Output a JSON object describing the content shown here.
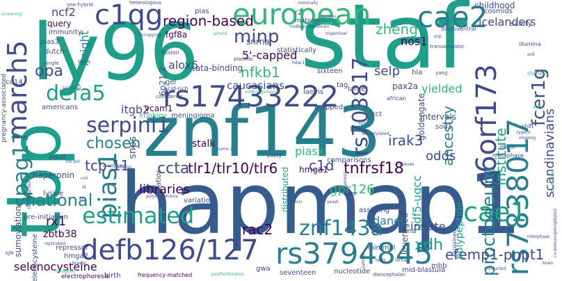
{
  "colors": {
    "background": "#ffffff",
    "teal": "#1f9e89",
    "dark_teal": "#277f8e",
    "blue": "#365c8d",
    "navy": "#3e4a89",
    "indigo": "#46327e",
    "purple": "#440154",
    "green": "#35b779",
    "light_green": "#6ece58",
    "lime": "#b5de2b",
    "yellow": "#dde318"
  },
  "words": {
    "w1": "staf",
    "w2": "ly96",
    "w3": "hapmap1",
    "w4": "znf143",
    "w5": "tbp",
    "w6": "european",
    "w7": "rs17433222",
    "w8": "c6orf173",
    "w9": "rs7838017",
    "w10": "cae2",
    "w11": "c1qg",
    "w12": "march5",
    "w13": "defb126/127",
    "w14": "rs3794845",
    "w15": "rs703817",
    "w16": "pias1",
    "w17": "cae1",
    "w18": "serpini1",
    "w19": "estimated",
    "w20": "spag17",
    "w21": "znf143a",
    "w22": "proctodeum",
    "w23": "defa5",
    "w24": "minp",
    "w25": "fcer1g",
    "w26": "national",
    "w27": "region-based",
    "w28": "institute",
    "w29": "tlr1/tlr10/tlr6",
    "w30": "ancestry",
    "w31": "tcp-11",
    "w32": "gdf5-uqcc",
    "w33": "ccta",
    "w34": "chosen",
    "w35": "tnfrsf18",
    "w36": "scandinavians",
    "w37": "efemp1-pnpt1",
    "w38": "xdh",
    "w39": "rac2",
    "w40": "nfkb1",
    "w41": "caucasians",
    "w42": "alox5",
    "w43": "ncf2",
    "w44": "opa",
    "w45": "height",
    "w46": "zheng",
    "w47": "nos1",
    "w48": "selp",
    "w49": "irak3",
    "w50": "5'-capped",
    "w51": "piasx",
    "w52": "c1d",
    "w53": "gpr126",
    "w54": "libraries",
    "w55": "danes",
    "w56": "polypeptide",
    "w57": "itgb2",
    "w58": "goldengate",
    "w59": "innate",
    "w60": "snps",
    "w61": "odds",
    "w62": "selenocysteine",
    "w63": "sumoylation",
    "w64": "zbtb38",
    "w65": "rx1",
    "w66": "hmga1",
    "w67": "distributed",
    "w68": "pax2a",
    "w69": "leveraged",
    "w70": "chaperonin",
    "w71": "yielded",
    "w72": "stalk",
    "w73": "6p21.2",
    "w74": "tata-binding",
    "w75": "snrna",
    "w76": "icelanders",
    "w77": "childhood",
    "w78": "fgf8a",
    "w79": "query",
    "w80": "immunity",
    "w81": "pias3",
    "w82": "dutch",
    "w83": "americans",
    "w84": "adult",
    "w85": "lysine",
    "w86": "pre-initiation",
    "w87": "selenocysteine",
    "w88": "vcam1",
    "w89": "ratios",
    "w90": "variation",
    "w91": "intervals",
    "w92": "statistically",
    "w93": "mapped",
    "w94": "sixteen",
    "w95": "comparisons",
    "w96": "assisting",
    "w97": "minimal",
    "w98": "trna",
    "w99": "nucleotide",
    "w100": "mid-blastula",
    "w101": "seventeen",
    "w102": "mhb",
    "w103": "gwa",
    "w104": "birth",
    "w105": "frequency-matched",
    "w106": "electrophoresis",
    "w107": "repressor",
    "w108": "hmga2",
    "w109": "laevis",
    "w110": "hla",
    "w111": "larger",
    "w112": "sod1",
    "w113": "african",
    "w114": "tag",
    "w115": "cct",
    "w116": "pias",
    "w117": "r2",
    "w118": "heterologous",
    "w119": "one-hybrid",
    "w120": "cosmids",
    "w121": "safety",
    "w122": "illumina",
    "w123": "cd14",
    "w124": "pregnancy-associated",
    "w125": "meningioma",
    "w126": "gel",
    "w127": "acid-rich",
    "w128": "confidence",
    "w129": "etiology",
    "w130": "placode",
    "w131": "fission",
    "w132": "basis",
    "w133": "single",
    "w134": "maternal",
    "w135": "midbrain-hindbrain",
    "w136": "dorsoventral",
    "w137": "transactivator",
    "w138": "yang",
    "w139": "stature",
    "w140": "allele",
    "w141": "shift",
    "w142": "zygotic",
    "w143": "ongoing",
    "w144": "minor",
    "w145": "metaphase",
    "w146": "explained",
    "w147": "sumo-1",
    "w148": "piasy",
    "w149": "genotyped",
    "w150": "glutamic",
    "w151": "coli",
    "w152": "iii",
    "w153": "zn",
    "w154": "polymorphisms",
    "w155": "loci",
    "w156": "yeast",
    "w157": "chop",
    "w158": "avenue",
    "w159": "tests",
    "w160": "tertiary",
    "w161": "interphase",
    "w162": "brain",
    "w163": "conducted",
    "w164": "diencephalon",
    "w165": "heritable",
    "w166": "brastic",
    "w167": "replicated",
    "w168": "fgf8",
    "w169": "screening",
    "w170": "microinjected",
    "w171": "mb pol",
    "w172": "hpf",
    "w173": "relieves",
    "w174": "genesis",
    "w175": "co-immunoprecipitated",
    "w176": "gli-kruppel",
    "w177": "deacetylated",
    "w178": "nominally",
    "w179": "termini",
    "w180": "trigeminal",
    "w181": "sphere",
    "w182": "occupying",
    "w183": "embryogenesis",
    "w184": "pair-long",
    "w185": "snp",
    "w186": "sod",
    "w187": "hdac1",
    "w188": "postfertilization"
  }
}
